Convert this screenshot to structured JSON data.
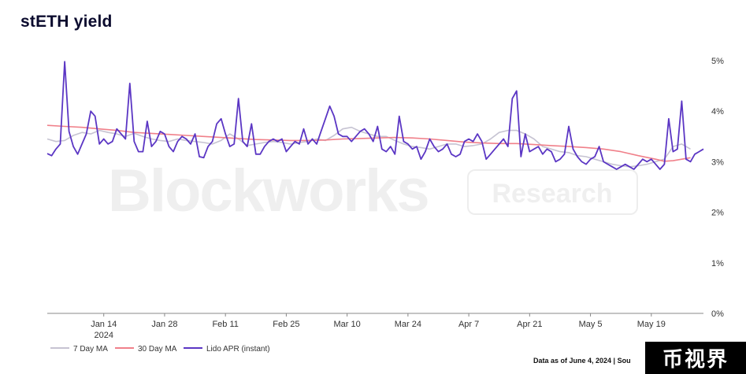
{
  "title": "stETH yield",
  "footnote": "Data as of June 4, 2024 | Sou",
  "badge_text": "币视界",
  "watermark": {
    "word1": "Blockworks",
    "word2": "Research"
  },
  "chart_data": {
    "type": "line",
    "title": "stETH yield",
    "xlabel": "",
    "ylabel": "",
    "ylim": [
      0,
      5
    ],
    "y_ticks": [
      "0%",
      "1%",
      "2%",
      "3%",
      "4%",
      "5%"
    ],
    "x_ticks": [
      {
        "label": "Jan 14",
        "sublabel": "2024",
        "day": 14
      },
      {
        "label": "Jan 28",
        "sublabel": "",
        "day": 28
      },
      {
        "label": "Feb 11",
        "sublabel": "",
        "day": 42
      },
      {
        "label": "Feb 25",
        "sublabel": "",
        "day": 56
      },
      {
        "label": "Mar 10",
        "sublabel": "",
        "day": 70
      },
      {
        "label": "Mar 24",
        "sublabel": "",
        "day": 84
      },
      {
        "label": "Apr 7",
        "sublabel": "",
        "day": 98
      },
      {
        "label": "Apr 21",
        "sublabel": "",
        "day": 112
      },
      {
        "label": "May 5",
        "sublabel": "",
        "day": 126
      },
      {
        "label": "May 19",
        "sublabel": "",
        "day": 140
      }
    ],
    "x_range": [
      1,
      149
    ],
    "legend_position": "bottom-left",
    "grid": false,
    "series": [
      {
        "name": "7 Day MA",
        "color": "#c6c3d2",
        "points": [
          [
            1,
            3.45
          ],
          [
            3,
            3.4
          ],
          [
            5,
            3.42
          ],
          [
            7,
            3.52
          ],
          [
            9,
            3.58
          ],
          [
            11,
            3.55
          ],
          [
            13,
            3.62
          ],
          [
            15,
            3.58
          ],
          [
            17,
            3.55
          ],
          [
            19,
            3.5
          ],
          [
            21,
            3.56
          ],
          [
            23,
            3.5
          ],
          [
            25,
            3.45
          ],
          [
            27,
            3.42
          ],
          [
            29,
            3.4
          ],
          [
            31,
            3.45
          ],
          [
            33,
            3.42
          ],
          [
            35,
            3.4
          ],
          [
            37,
            3.38
          ],
          [
            39,
            3.35
          ],
          [
            41,
            3.42
          ],
          [
            43,
            3.55
          ],
          [
            45,
            3.45
          ],
          [
            47,
            3.32
          ],
          [
            49,
            3.35
          ],
          [
            51,
            3.38
          ],
          [
            53,
            3.4
          ],
          [
            55,
            3.38
          ],
          [
            57,
            3.35
          ],
          [
            59,
            3.38
          ],
          [
            61,
            3.4
          ],
          [
            63,
            3.45
          ],
          [
            65,
            3.42
          ],
          [
            67,
            3.52
          ],
          [
            69,
            3.65
          ],
          [
            71,
            3.68
          ],
          [
            73,
            3.6
          ],
          [
            75,
            3.55
          ],
          [
            77,
            3.5
          ],
          [
            79,
            3.5
          ],
          [
            81,
            3.42
          ],
          [
            83,
            3.35
          ],
          [
            85,
            3.3
          ],
          [
            87,
            3.28
          ],
          [
            89,
            3.25
          ],
          [
            91,
            3.3
          ],
          [
            93,
            3.35
          ],
          [
            95,
            3.35
          ],
          [
            97,
            3.3
          ],
          [
            99,
            3.32
          ],
          [
            101,
            3.35
          ],
          [
            103,
            3.45
          ],
          [
            105,
            3.58
          ],
          [
            107,
            3.62
          ],
          [
            109,
            3.62
          ],
          [
            111,
            3.55
          ],
          [
            113,
            3.45
          ],
          [
            115,
            3.3
          ],
          [
            117,
            3.25
          ],
          [
            119,
            3.2
          ],
          [
            121,
            3.18
          ],
          [
            123,
            3.12
          ],
          [
            125,
            3.1
          ],
          [
            127,
            3.05
          ],
          [
            129,
            3.0
          ],
          [
            131,
            2.95
          ],
          [
            133,
            2.92
          ],
          [
            135,
            2.9
          ],
          [
            137,
            2.92
          ],
          [
            139,
            2.95
          ],
          [
            141,
            3.0
          ],
          [
            143,
            3.05
          ],
          [
            145,
            3.3
          ],
          [
            147,
            3.35
          ],
          [
            149,
            3.25
          ]
        ]
      },
      {
        "name": "30 Day MA",
        "color": "#f0808a",
        "points": [
          [
            1,
            3.72
          ],
          [
            5,
            3.7
          ],
          [
            9,
            3.68
          ],
          [
            13,
            3.65
          ],
          [
            17,
            3.62
          ],
          [
            21,
            3.58
          ],
          [
            25,
            3.56
          ],
          [
            29,
            3.54
          ],
          [
            33,
            3.52
          ],
          [
            37,
            3.5
          ],
          [
            41,
            3.48
          ],
          [
            45,
            3.46
          ],
          [
            49,
            3.44
          ],
          [
            53,
            3.43
          ],
          [
            57,
            3.42
          ],
          [
            61,
            3.42
          ],
          [
            65,
            3.43
          ],
          [
            69,
            3.45
          ],
          [
            73,
            3.46
          ],
          [
            77,
            3.47
          ],
          [
            81,
            3.48
          ],
          [
            85,
            3.47
          ],
          [
            89,
            3.45
          ],
          [
            93,
            3.42
          ],
          [
            97,
            3.39
          ],
          [
            101,
            3.37
          ],
          [
            105,
            3.36
          ],
          [
            109,
            3.36
          ],
          [
            113,
            3.34
          ],
          [
            117,
            3.32
          ],
          [
            121,
            3.3
          ],
          [
            125,
            3.28
          ],
          [
            129,
            3.25
          ],
          [
            133,
            3.2
          ],
          [
            137,
            3.12
          ],
          [
            141,
            3.05
          ],
          [
            143,
            3.01
          ],
          [
            145,
            3.02
          ],
          [
            147,
            3.05
          ],
          [
            149,
            3.08
          ]
        ]
      },
      {
        "name": "Lido APR (instant)",
        "color": "#5b36c4",
        "points": [
          [
            1,
            3.16
          ],
          [
            2,
            3.12
          ],
          [
            3,
            3.25
          ],
          [
            4,
            3.35
          ],
          [
            5,
            4.98
          ],
          [
            6,
            3.6
          ],
          [
            7,
            3.3
          ],
          [
            8,
            3.15
          ],
          [
            9,
            3.35
          ],
          [
            10,
            3.55
          ],
          [
            11,
            4.0
          ],
          [
            12,
            3.9
          ],
          [
            13,
            3.35
          ],
          [
            14,
            3.45
          ],
          [
            15,
            3.35
          ],
          [
            16,
            3.4
          ],
          [
            17,
            3.65
          ],
          [
            18,
            3.55
          ],
          [
            19,
            3.45
          ],
          [
            20,
            4.55
          ],
          [
            21,
            3.4
          ],
          [
            22,
            3.2
          ],
          [
            23,
            3.2
          ],
          [
            24,
            3.8
          ],
          [
            25,
            3.3
          ],
          [
            26,
            3.4
          ],
          [
            27,
            3.6
          ],
          [
            28,
            3.55
          ],
          [
            29,
            3.3
          ],
          [
            30,
            3.2
          ],
          [
            31,
            3.4
          ],
          [
            32,
            3.5
          ],
          [
            33,
            3.45
          ],
          [
            34,
            3.35
          ],
          [
            35,
            3.55
          ],
          [
            36,
            3.1
          ],
          [
            37,
            3.08
          ],
          [
            38,
            3.3
          ],
          [
            39,
            3.4
          ],
          [
            40,
            3.75
          ],
          [
            41,
            3.85
          ],
          [
            42,
            3.55
          ],
          [
            43,
            3.3
          ],
          [
            44,
            3.35
          ],
          [
            45,
            4.25
          ],
          [
            46,
            3.4
          ],
          [
            47,
            3.3
          ],
          [
            48,
            3.75
          ],
          [
            49,
            3.15
          ],
          [
            50,
            3.15
          ],
          [
            51,
            3.3
          ],
          [
            52,
            3.4
          ],
          [
            53,
            3.45
          ],
          [
            54,
            3.4
          ],
          [
            55,
            3.45
          ],
          [
            56,
            3.2
          ],
          [
            57,
            3.3
          ],
          [
            58,
            3.4
          ],
          [
            59,
            3.35
          ],
          [
            60,
            3.65
          ],
          [
            61,
            3.35
          ],
          [
            62,
            3.45
          ],
          [
            63,
            3.35
          ],
          [
            64,
            3.6
          ],
          [
            65,
            3.85
          ],
          [
            66,
            4.1
          ],
          [
            67,
            3.9
          ],
          [
            68,
            3.55
          ],
          [
            69,
            3.5
          ],
          [
            70,
            3.5
          ],
          [
            71,
            3.4
          ],
          [
            72,
            3.5
          ],
          [
            73,
            3.6
          ],
          [
            74,
            3.65
          ],
          [
            75,
            3.55
          ],
          [
            76,
            3.4
          ],
          [
            77,
            3.7
          ],
          [
            78,
            3.25
          ],
          [
            79,
            3.2
          ],
          [
            80,
            3.3
          ],
          [
            81,
            3.15
          ],
          [
            82,
            3.9
          ],
          [
            83,
            3.4
          ],
          [
            84,
            3.35
          ],
          [
            85,
            3.25
          ],
          [
            86,
            3.3
          ],
          [
            87,
            3.05
          ],
          [
            88,
            3.2
          ],
          [
            89,
            3.45
          ],
          [
            90,
            3.3
          ],
          [
            91,
            3.2
          ],
          [
            92,
            3.25
          ],
          [
            93,
            3.35
          ],
          [
            94,
            3.15
          ],
          [
            95,
            3.1
          ],
          [
            96,
            3.15
          ],
          [
            97,
            3.4
          ],
          [
            98,
            3.45
          ],
          [
            99,
            3.4
          ],
          [
            100,
            3.55
          ],
          [
            101,
            3.4
          ],
          [
            102,
            3.05
          ],
          [
            103,
            3.15
          ],
          [
            104,
            3.25
          ],
          [
            105,
            3.35
          ],
          [
            106,
            3.45
          ],
          [
            107,
            3.3
          ],
          [
            108,
            4.25
          ],
          [
            109,
            4.4
          ],
          [
            110,
            3.1
          ],
          [
            111,
            3.55
          ],
          [
            112,
            3.2
          ],
          [
            113,
            3.25
          ],
          [
            114,
            3.3
          ],
          [
            115,
            3.15
          ],
          [
            116,
            3.25
          ],
          [
            117,
            3.2
          ],
          [
            118,
            3.0
          ],
          [
            119,
            3.05
          ],
          [
            120,
            3.15
          ],
          [
            121,
            3.7
          ],
          [
            122,
            3.25
          ],
          [
            123,
            3.1
          ],
          [
            124,
            3.0
          ],
          [
            125,
            2.95
          ],
          [
            126,
            3.05
          ],
          [
            127,
            3.1
          ],
          [
            128,
            3.3
          ],
          [
            129,
            3.0
          ],
          [
            130,
            2.95
          ],
          [
            131,
            2.9
          ],
          [
            132,
            2.85
          ],
          [
            133,
            2.9
          ],
          [
            134,
            2.95
          ],
          [
            135,
            2.9
          ],
          [
            136,
            2.85
          ],
          [
            137,
            2.95
          ],
          [
            138,
            3.05
          ],
          [
            139,
            3.0
          ],
          [
            140,
            3.05
          ],
          [
            141,
            2.95
          ],
          [
            142,
            2.85
          ],
          [
            143,
            2.95
          ],
          [
            144,
            3.85
          ],
          [
            145,
            3.2
          ],
          [
            146,
            3.25
          ],
          [
            147,
            4.2
          ],
          [
            148,
            3.05
          ],
          [
            149,
            3.0
          ],
          [
            150,
            3.15
          ],
          [
            151,
            3.2
          ],
          [
            152,
            3.25
          ]
        ]
      }
    ]
  }
}
